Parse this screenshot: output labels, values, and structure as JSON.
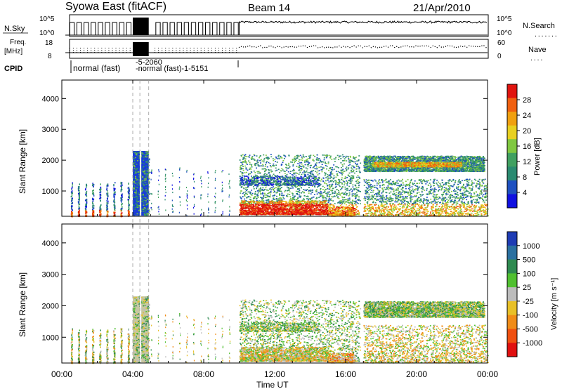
{
  "header": {
    "title": "Syowa East (fitACF)",
    "beam": "Beam 14",
    "date": "21/Apr/2010"
  },
  "top_panels": {
    "nsky_label": "N.Sky",
    "nsky_ticks": [
      "10^5",
      "10^0"
    ],
    "nsearch_label": "N.Search",
    "nsearch_ticks": [
      "10^5",
      "10^0"
    ],
    "freq_label_line1": "Freq.",
    "freq_label_line2": "[MHz]",
    "freq_ticks": [
      "18",
      "8"
    ],
    "nave_label": "Nave",
    "nave_ticks": [
      "60",
      "0"
    ],
    "cpid_label": "CPID",
    "cpid_entries": [
      "normal (fast)",
      "-5-2060",
      "-normal (fast)-1-5151"
    ]
  },
  "power_panel": {
    "ylabel": "Slant Range [km]",
    "yticks": [
      "4000",
      "3000",
      "2000",
      "1000"
    ],
    "colorbar_label": "Power [dB]",
    "colorbar_ticks": [
      "28",
      "24",
      "20",
      "16",
      "12",
      "8",
      "4"
    ],
    "colors": [
      "#e0140f",
      "#f06010",
      "#f0a010",
      "#e8d020",
      "#80c840",
      "#40a060",
      "#2a8a70",
      "#1e50c0",
      "#1010e0"
    ]
  },
  "velocity_panel": {
    "ylabel": "Slant Range [km]",
    "yticks": [
      "4000",
      "3000",
      "2000",
      "1000"
    ],
    "colorbar_label": "Velocity [m s⁻¹]",
    "colorbar_ticks": [
      "1000",
      "500",
      "100",
      "25",
      "-25",
      "-100",
      "-500",
      "-1000"
    ],
    "colors": [
      "#1e3cb4",
      "#2a70a0",
      "#2e8a50",
      "#50c030",
      "#bcbcbc",
      "#e8c028",
      "#f08c18",
      "#f05010",
      "#e01010"
    ]
  },
  "xaxis": {
    "label": "Time UT",
    "ticks": [
      "00:00",
      "04:00",
      "08:00",
      "12:00",
      "16:00",
      "20:00",
      "00:00"
    ]
  },
  "chart_data": {
    "type": "heatmap",
    "title": "Syowa East (fitACF)",
    "xlabel": "Time UT",
    "ylabel": "Slant Range [km]",
    "x_range_hours": [
      0,
      24
    ],
    "ylim": [
      180,
      4600
    ],
    "panels": [
      "Power [dB]",
      "Velocity [m s-1]"
    ],
    "power_range_db": [
      0,
      32
    ],
    "velocity_range_ms": [
      -1000,
      1000
    ],
    "echo_regions": [
      {
        "t_start": 0.5,
        "t_end": 3.8,
        "r_min": 200,
        "r_max": 1300,
        "desc": "intermittent narrow stripes"
      },
      {
        "t_start": 4.0,
        "t_end": 4.9,
        "r_min": 200,
        "r_max": 2300,
        "desc": "dense block"
      },
      {
        "t_start": 10.0,
        "t_end": 16.8,
        "r_min": 200,
        "r_max": 2200,
        "desc": "patchy echoes"
      },
      {
        "t_start": 17.0,
        "t_end": 24.0,
        "r_min": 200,
        "r_max": 2200,
        "desc": "band near 1800 km and low range"
      }
    ],
    "grid": false,
    "legend": "colorbar right"
  }
}
